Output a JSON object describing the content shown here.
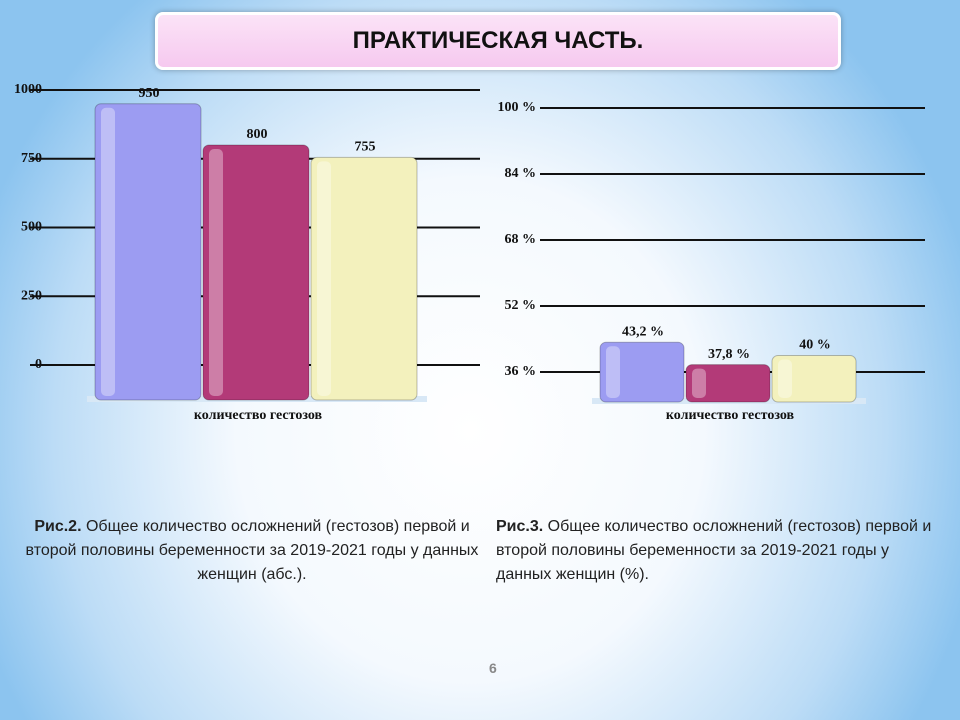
{
  "header": {
    "title": "ПРАКТИЧЕСКАЯ ЧАСТЬ."
  },
  "chart_data": [
    {
      "type": "bar",
      "x_label": "количество гестозов",
      "values": [
        950,
        800,
        755
      ],
      "colors": [
        "#9c9cf2",
        "#b33a78",
        "#f3f1bd"
      ],
      "ylim": [
        0,
        1000
      ],
      "yticks": [
        0,
        250,
        500,
        750,
        1000
      ],
      "grid": true
    },
    {
      "type": "bar",
      "x_label": "количество гестозов",
      "values": [
        43.2,
        37.8,
        40
      ],
      "value_labels": [
        "43,2 %",
        "37,8 %",
        "40 %"
      ],
      "colors": [
        "#9c9cf2",
        "#b33a78",
        "#f3f1bd"
      ],
      "ylim": [
        36,
        100
      ],
      "yticks": [
        {
          "value": 36,
          "label": "36 %"
        },
        {
          "value": 52,
          "label": "52 %"
        },
        {
          "value": 68,
          "label": "68 %"
        },
        {
          "value": 84,
          "label": "84 %"
        },
        {
          "value": 100,
          "label": "100 %"
        }
      ],
      "grid": true
    }
  ],
  "captions": [
    {
      "label": "Рис.2.",
      "text": " Общее количество осложнений (гестозов) первой и второй половины беременности за 2019-2021 годы у данных женщин (абс.)."
    },
    {
      "label": "Рис.3.",
      "text": " Общее количество осложнений (гестозов) первой и второй половины беременности за 2019-2021 годы у данных женщин (%)."
    }
  ],
  "page_number": "6"
}
